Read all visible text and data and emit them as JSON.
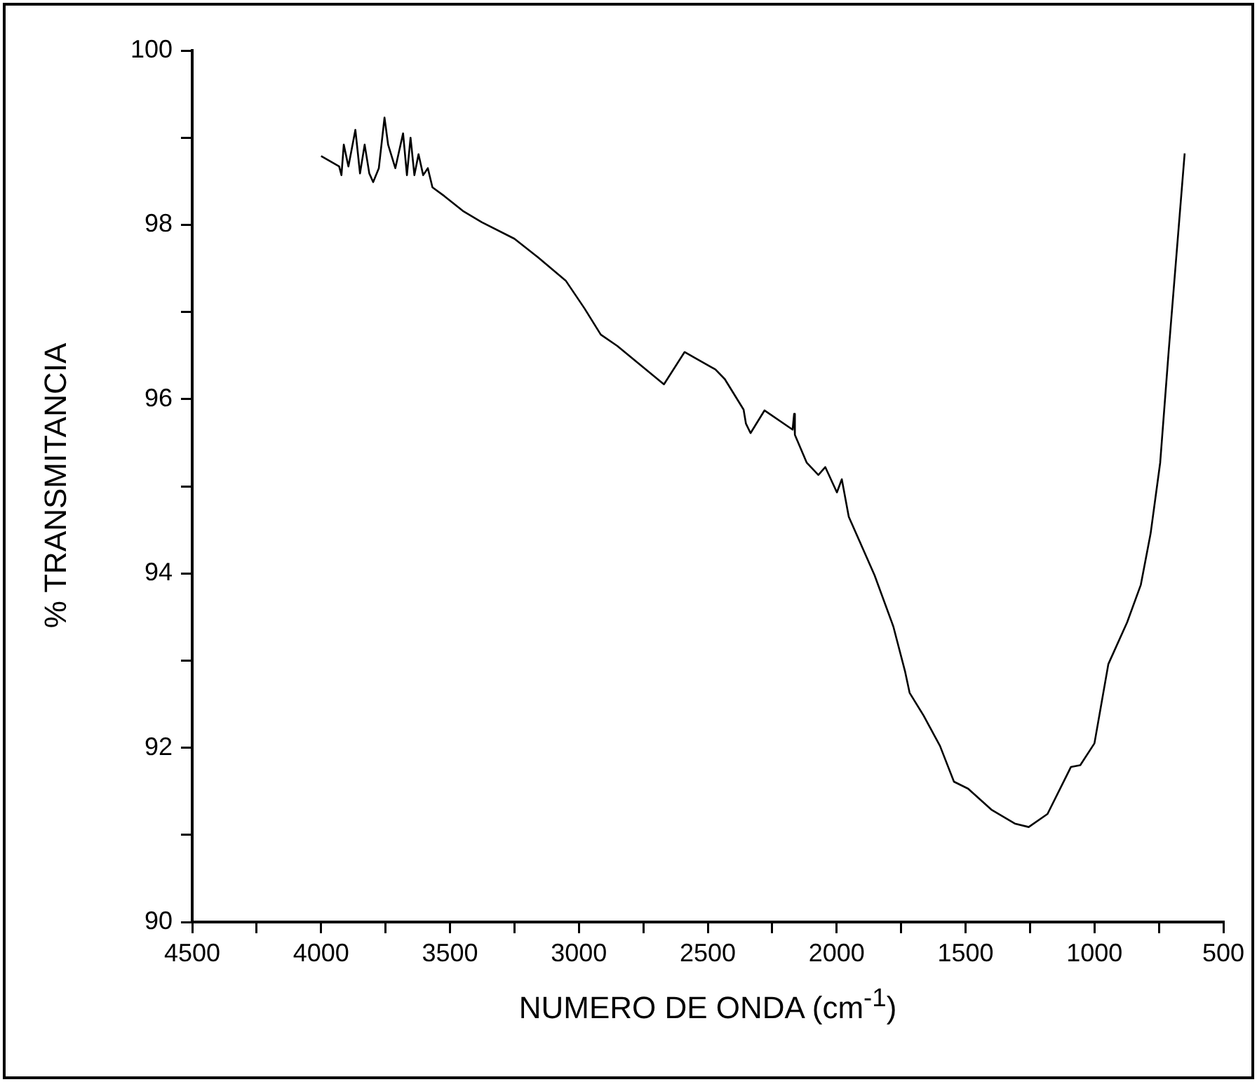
{
  "chart_data": {
    "type": "line",
    "xlabel": "NUMERO DE ONDA (cm$^{-1}$)",
    "ylabel": "% TRANSMITANCIA",
    "xlim": [
      4500,
      500
    ],
    "xticks": [
      4500,
      {
        "value": 4250,
        "label": null
      },
      4000,
      {
        "value": 3750,
        "label": null
      },
      3500,
      {
        "value": 3250,
        "label": null
      },
      3000,
      {
        "value": 2750,
        "label": null
      },
      2500,
      {
        "value": 2250,
        "label": null
      },
      2000,
      {
        "value": 1750,
        "label": null
      },
      1500,
      {
        "value": 1250,
        "label": null
      },
      1000,
      {
        "value": 750,
        "label": null
      },
      500
    ],
    "ylim": [
      90,
      100
    ],
    "yticks": [
      90,
      {
        "value": 91,
        "label": null
      },
      92,
      {
        "value": 93,
        "label": null
      },
      94,
      {
        "value": 95,
        "label": null
      },
      96,
      {
        "value": 97,
        "label": null
      },
      98,
      {
        "value": 99,
        "label": null
      },
      100
    ],
    "grid": false,
    "legend": false,
    "series": [
      {
        "color": "#000000",
        "x": [
          4000,
          3930,
          3921,
          3912,
          3894,
          3867,
          3849,
          3831,
          3813,
          3798,
          3776,
          3754,
          3740,
          3712,
          3682,
          3667,
          3653,
          3638,
          3622,
          3604,
          3586,
          3568,
          3522,
          3450,
          3377,
          3250,
          3160,
          3051,
          2978,
          2915,
          2851,
          2670,
          2590,
          2470,
          2434,
          2361,
          2352,
          2334,
          2280,
          2171,
          2165,
          2162,
          2116,
          2071,
          2044,
          1999,
          1980,
          1953,
          1853,
          1780,
          1735,
          1717,
          1663,
          1599,
          1545,
          1490,
          1400,
          1309,
          1255,
          1182,
          1091,
          1055,
          1000,
          946,
          873,
          820,
          782,
          745,
          712,
          650
        ],
        "values": [
          98.79,
          98.67,
          98.57,
          98.92,
          98.67,
          99.09,
          98.59,
          98.92,
          98.59,
          98.49,
          98.65,
          99.23,
          98.92,
          98.65,
          99.05,
          98.57,
          99.0,
          98.57,
          98.81,
          98.57,
          98.65,
          98.43,
          98.33,
          98.16,
          98.03,
          97.84,
          97.63,
          97.36,
          97.04,
          96.74,
          96.61,
          96.17,
          96.54,
          96.34,
          96.23,
          95.88,
          95.72,
          95.61,
          95.87,
          95.65,
          95.83,
          95.59,
          95.27,
          95.13,
          95.22,
          94.93,
          95.08,
          94.65,
          93.98,
          93.39,
          92.88,
          92.63,
          92.37,
          92.02,
          91.61,
          91.53,
          91.29,
          91.13,
          91.09,
          91.24,
          91.78,
          91.8,
          92.05,
          92.96,
          93.44,
          93.87,
          94.46,
          95.27,
          96.55,
          98.82
        ]
      }
    ]
  }
}
